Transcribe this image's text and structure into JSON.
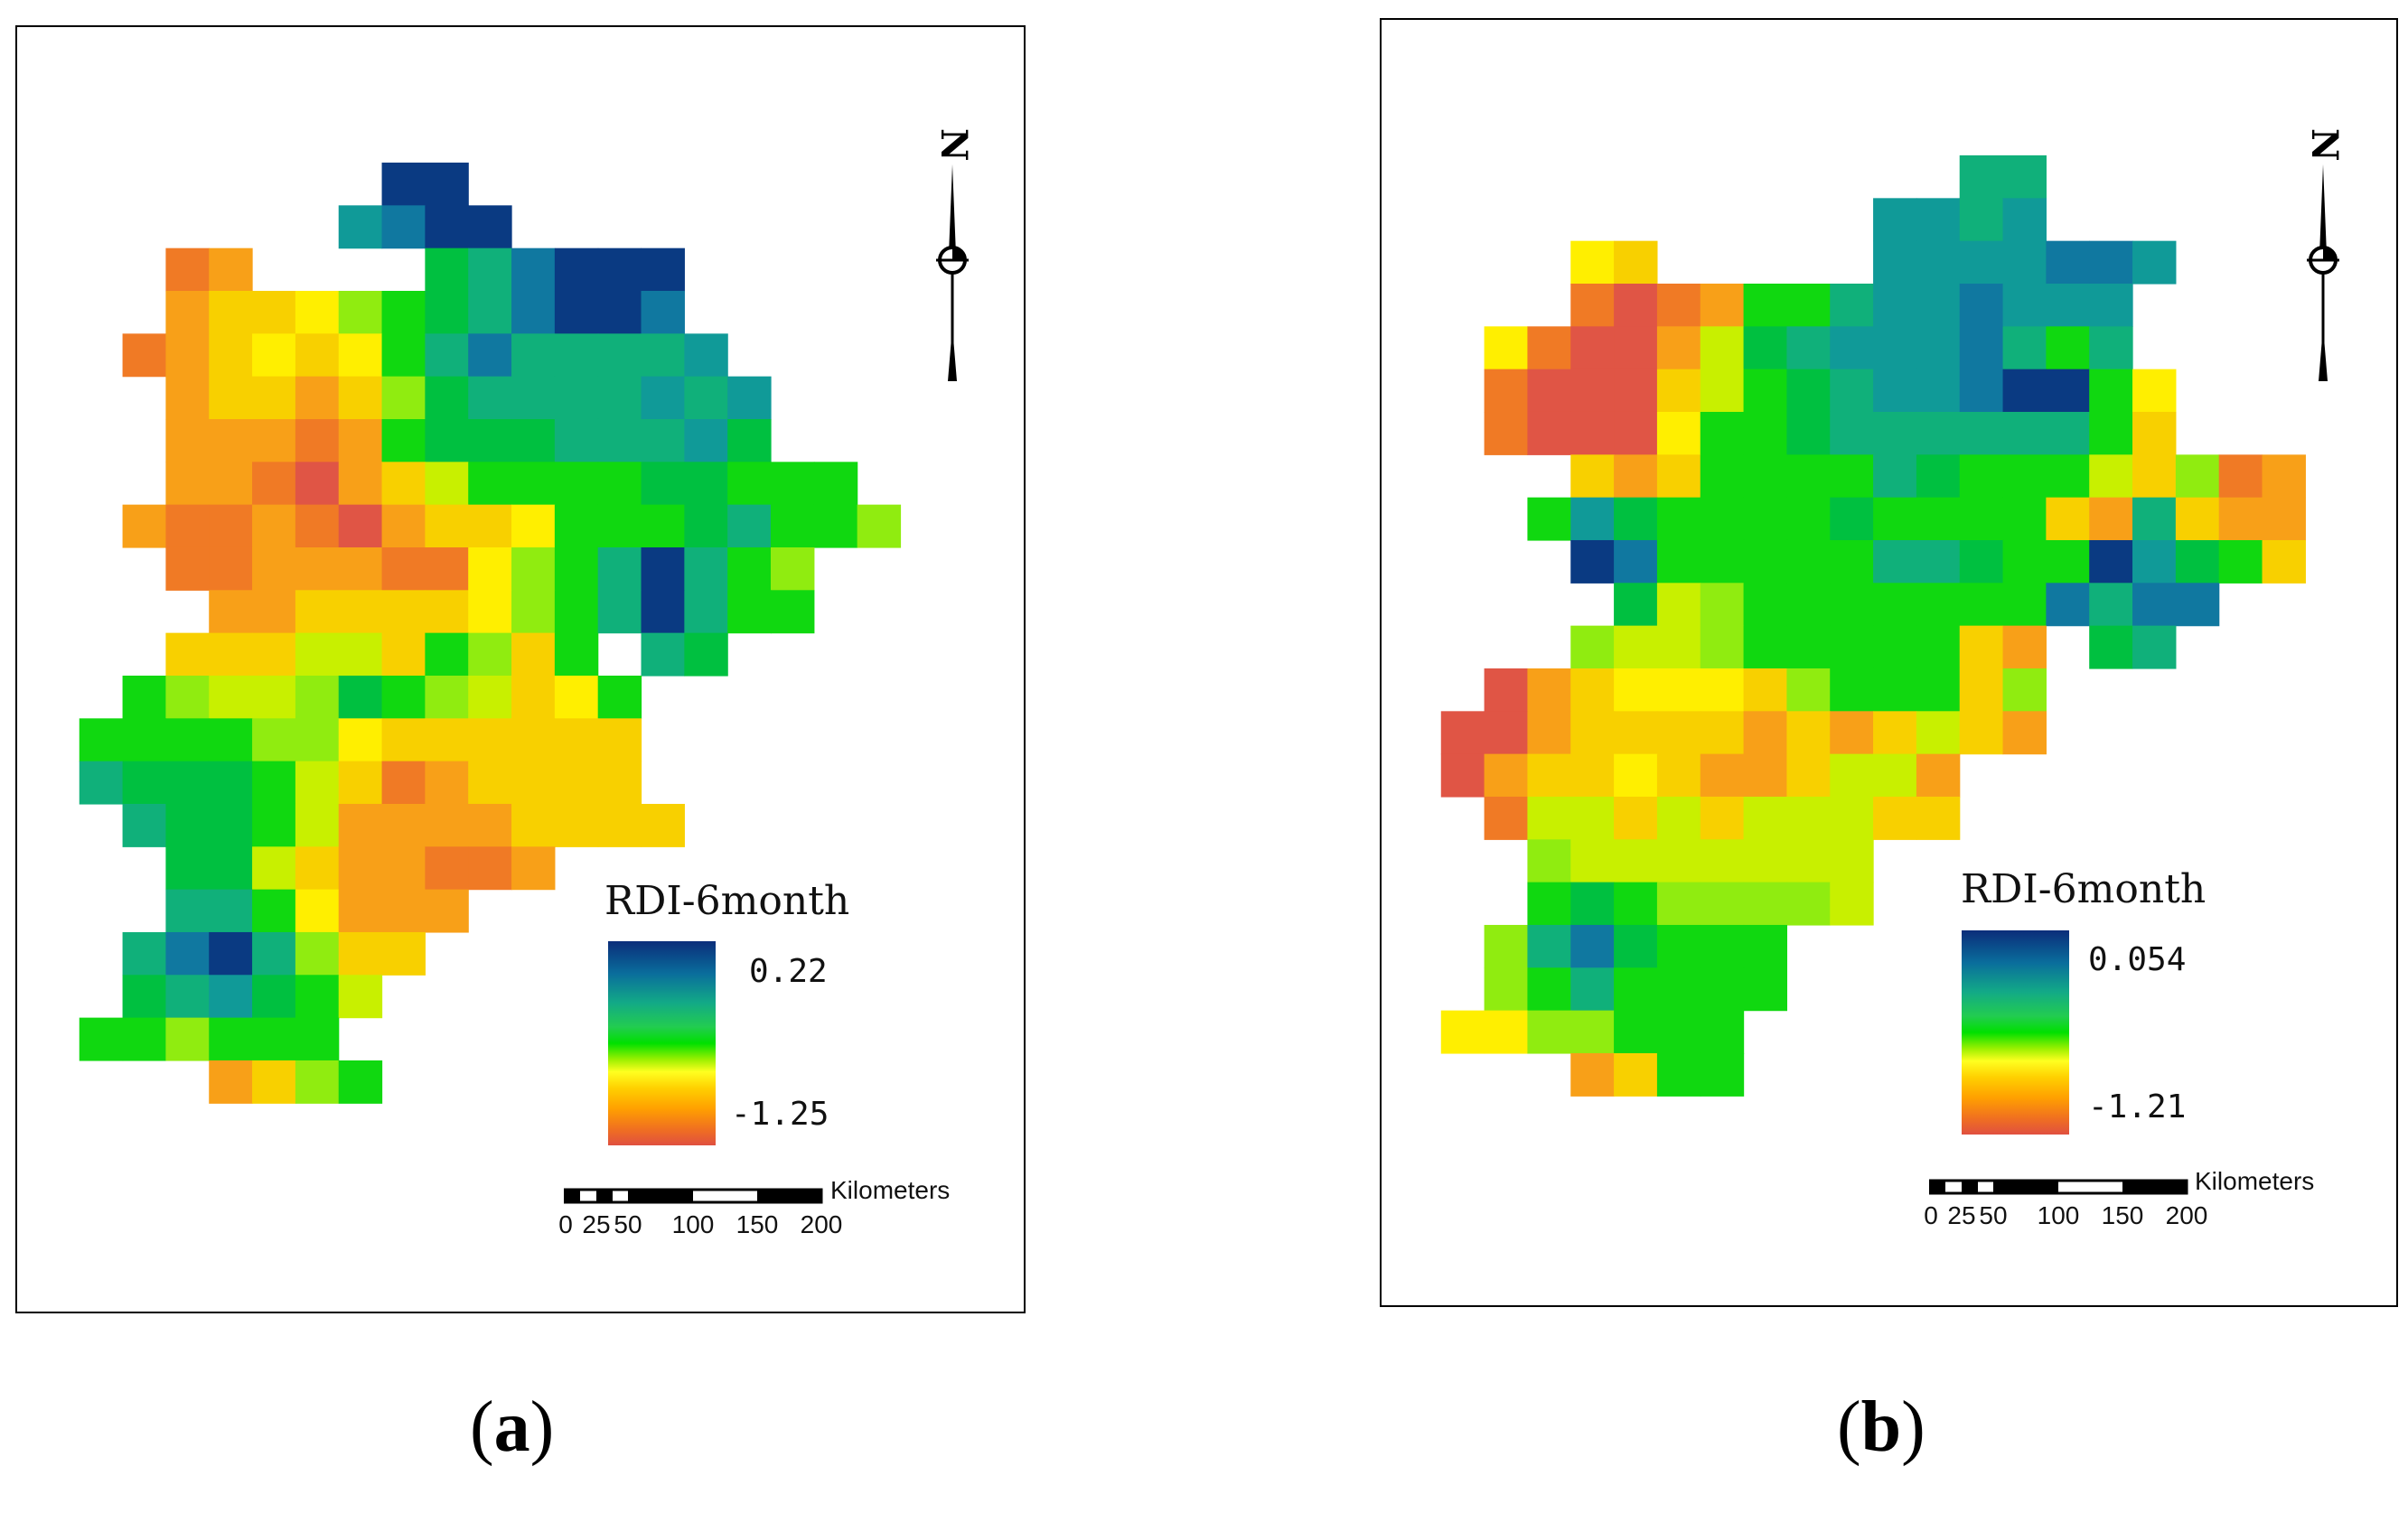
{
  "figure": {
    "panels": [
      {
        "id": "a",
        "caption_letter": "a",
        "legend": {
          "title": "RDI-6month",
          "max_label": "0.22",
          "min_label": "-1.25"
        },
        "scale": {
          "unit": "Kilometers",
          "ticks": [
            "0",
            "25",
            "50",
            "100",
            "150",
            "200"
          ]
        },
        "north_label": "N"
      },
      {
        "id": "b",
        "caption_letter": "b",
        "legend": {
          "title": "RDI-6month",
          "max_label": "0.054",
          "min_label": "-1.21"
        },
        "scale": {
          "unit": "Kilometers",
          "ticks": [
            "0",
            "25",
            "50",
            "100",
            "150",
            "200"
          ]
        },
        "north_label": "N"
      }
    ],
    "palette": {
      "R": "#e05545",
      "O": "#f07a25",
      "A": "#f8a018",
      "Y": "#f8d000",
      "L": "#ffef00",
      "C": "#c8f000",
      "M": "#90ec10",
      "G": "#10d810",
      "E": "#00c040",
      "T": "#10b07a",
      "S": "#109a98",
      "U": "#1078a0",
      "D": "#0a3a82"
    }
  }
}
